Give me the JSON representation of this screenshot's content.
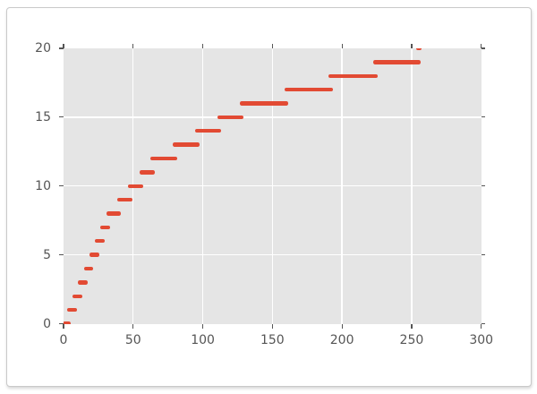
{
  "chart_data": {
    "type": "step",
    "title": "",
    "xlabel": "",
    "ylabel": "",
    "xlim": [
      0,
      300
    ],
    "ylim": [
      0,
      20
    ],
    "x_ticks": [
      0,
      50,
      100,
      150,
      200,
      250,
      300
    ],
    "x_tick_labels": [
      "0",
      "50",
      "100",
      "150",
      "200",
      "250",
      "300"
    ],
    "y_ticks": [
      0,
      5,
      10,
      15,
      20
    ],
    "y_tick_labels": [
      "0",
      "5",
      "10",
      "15",
      "20"
    ],
    "grid": true,
    "legend": "none",
    "description": "Monotonic staircase of thick horizontal red dashes; each step is one y unit tall, step widths double every 4 steps (boundaries 4,8,...,32,40,48,56,64,80,96,112,128,160,192,224,256); first and last dashes are clipped at the axes edges.",
    "segments": [
      {
        "y": 0,
        "x_start": 1,
        "x_end": 4
      },
      {
        "y": 1,
        "x_start": 4,
        "x_end": 8
      },
      {
        "y": 2,
        "x_start": 8,
        "x_end": 12
      },
      {
        "y": 3,
        "x_start": 12,
        "x_end": 16
      },
      {
        "y": 4,
        "x_start": 16,
        "x_end": 20
      },
      {
        "y": 5,
        "x_start": 20,
        "x_end": 24
      },
      {
        "y": 6,
        "x_start": 24,
        "x_end": 28
      },
      {
        "y": 7,
        "x_start": 28,
        "x_end": 32
      },
      {
        "y": 8,
        "x_start": 32,
        "x_end": 40
      },
      {
        "y": 9,
        "x_start": 40,
        "x_end": 48
      },
      {
        "y": 10,
        "x_start": 48,
        "x_end": 56
      },
      {
        "y": 11,
        "x_start": 56,
        "x_end": 64
      },
      {
        "y": 12,
        "x_start": 64,
        "x_end": 80
      },
      {
        "y": 13,
        "x_start": 80,
        "x_end": 96
      },
      {
        "y": 14,
        "x_start": 96,
        "x_end": 112
      },
      {
        "y": 15,
        "x_start": 112,
        "x_end": 128
      },
      {
        "y": 16,
        "x_start": 128,
        "x_end": 160
      },
      {
        "y": 17,
        "x_start": 160,
        "x_end": 192
      },
      {
        "y": 18,
        "x_start": 192,
        "x_end": 224
      },
      {
        "y": 19,
        "x_start": 224,
        "x_end": 255
      },
      {
        "y": 20,
        "x_start": 255,
        "x_end": 256
      }
    ]
  },
  "colors": {
    "series": "#E24A33",
    "plot_background": "#E5E5E5",
    "grid": "#FFFFFF",
    "tick_and_label": "#555555",
    "card_border": "#C9C9C9",
    "page_background": "#FFFFFF"
  }
}
